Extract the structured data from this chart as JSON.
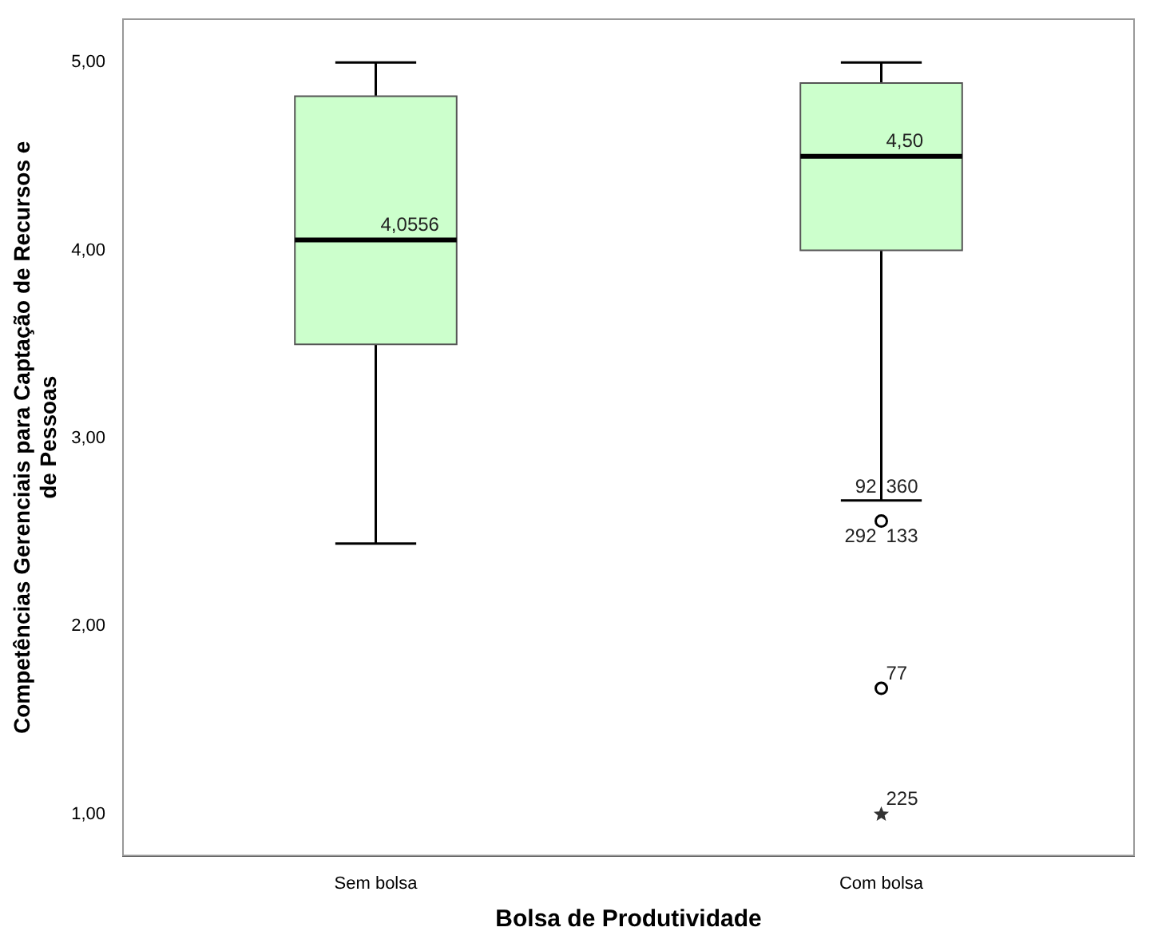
{
  "chart_data": {
    "type": "box",
    "xlabel": "Bolsa de Produtividade",
    "ylabel": "Competências Gerenciais para Captação de Recursos e de Pessoas",
    "categories": [
      "Sem bolsa",
      "Com bolsa"
    ],
    "series": [
      {
        "type": "box",
        "color": "#ccffcc",
        "boxes": [
          {
            "low": 2.44,
            "q1": 3.5,
            "median": 4.0556,
            "q3": 4.82,
            "high": 5.0
          },
          {
            "low": 2.67,
            "q1": 4.0,
            "median": 4.5,
            "q3": 4.89,
            "high": 5.0
          }
        ]
      },
      {
        "type": "scatter",
        "marker": "circle",
        "color": "#000000",
        "x": [
          "Com bolsa",
          "Com bolsa"
        ],
        "values": [
          2.56,
          1.67
        ]
      },
      {
        "type": "scatter",
        "marker": "star",
        "color": "#333333",
        "x": [
          "Com bolsa"
        ],
        "values": [
          1.0
        ]
      }
    ],
    "ylim": [
      0.78,
      5.23
    ],
    "yticks": [
      {
        "value": 1,
        "label": "1,00"
      },
      {
        "value": 2,
        "label": "2,00"
      },
      {
        "value": 3,
        "label": "3,00"
      },
      {
        "value": 4,
        "label": "4,00"
      },
      {
        "value": 5,
        "label": "5,00"
      }
    ],
    "grid": false,
    "legend": false,
    "annotations": [
      {
        "text": "4,0556",
        "x": "Sem bolsa",
        "y": 4.0556
      },
      {
        "text": "4,50",
        "x": "Com bolsa",
        "y": 4.5
      },
      {
        "text": "92",
        "x": "Com bolsa",
        "y": 2.67
      },
      {
        "text": "360",
        "x": "Com bolsa",
        "y": 2.67
      },
      {
        "text": "292",
        "x": "Com bolsa",
        "y": 2.56
      },
      {
        "text": "133",
        "x": "Com bolsa",
        "y": 2.56
      },
      {
        "text": "77",
        "x": "Com bolsa",
        "y": 1.67
      },
      {
        "text": "225",
        "x": "Com bolsa",
        "y": 1.0
      }
    ]
  }
}
